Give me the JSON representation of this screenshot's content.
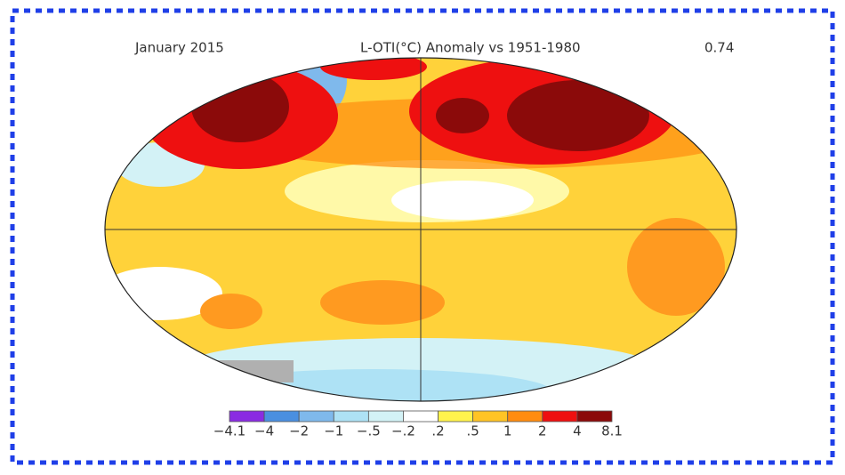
{
  "header": {
    "date": "January 2015",
    "title": "L-OTI(°C) Anomaly vs 1951-1980",
    "global_mean": "0.74"
  },
  "legend": {
    "labels": [
      "−4.1",
      "−4",
      "−2",
      "−1",
      "−.5",
      "−.2",
      ".2",
      ".5",
      "1",
      "2",
      "4",
      "8.1"
    ],
    "colors": [
      "#8a2be2",
      "#4a8fe0",
      "#7fb9ec",
      "#aee2f5",
      "#d3f2f6",
      "#ffffff",
      "#fff34d",
      "#ffc425",
      "#ff8c10",
      "#ee1010",
      "#8b0a0a"
    ]
  }
}
